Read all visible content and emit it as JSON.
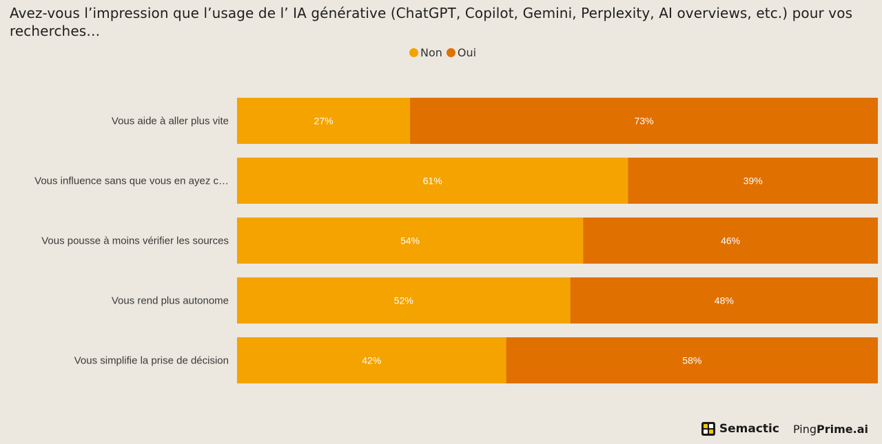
{
  "title": "Avez-vous l’impression que l’usage de l’ IA générative (ChatGPT, Copilot, Gemini, Perplexity, AI overviews, etc.) pour vos recherches…",
  "colors": {
    "non": "#f4a300",
    "oui": "#e07000",
    "background": "#ece8df"
  },
  "chart_data": {
    "type": "bar",
    "orientation": "horizontal",
    "stacked": true,
    "percent": true,
    "categories": [
      "Vous aide à aller plus vite",
      "Vous influence sans que vous en ayez c…",
      "Vous pousse à moins vérifier les sources",
      "Vous rend plus autonome",
      "Vous simplifie la prise de décision"
    ],
    "series": [
      {
        "name": "Non",
        "values": [
          27,
          61,
          54,
          52,
          42
        ],
        "labels": [
          "27%",
          "61%",
          "54%",
          "52%",
          "42%"
        ]
      },
      {
        "name": "Oui",
        "values": [
          73,
          39,
          46,
          48,
          58
        ],
        "labels": [
          "73%",
          "39%",
          "46%",
          "48%",
          "58%"
        ]
      }
    ],
    "xlim": [
      0,
      100
    ],
    "legend_position": "top",
    "grid": false
  },
  "brand": {
    "semactic": "Semactic",
    "pingprime_left": "Ping",
    "pingprime_right": "Prime.ai"
  }
}
